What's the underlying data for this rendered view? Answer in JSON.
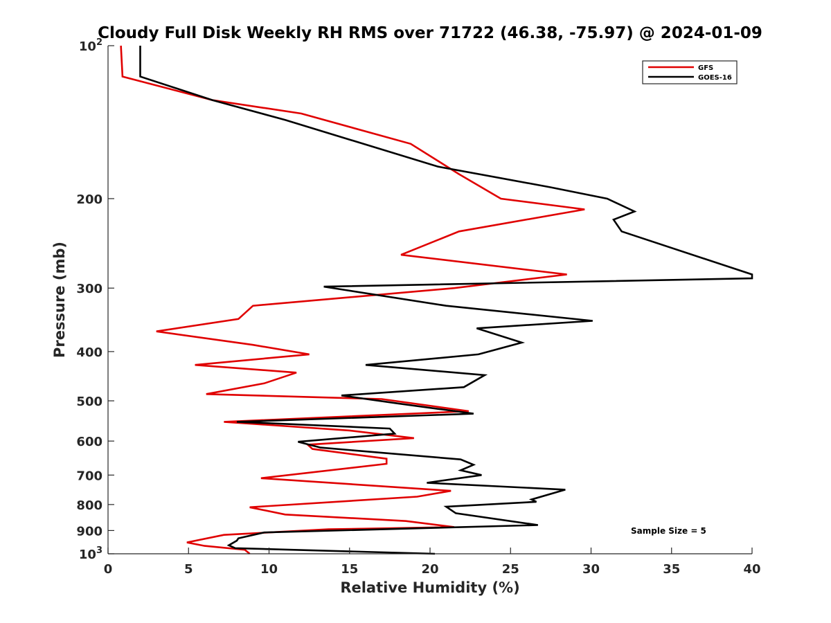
{
  "chart_data": {
    "type": "line",
    "title": "Cloudy Full Disk Weekly RH RMS over 71722 (46.38, -75.97) @ 2024-01-09",
    "xlabel": "Relative Humidity (%)",
    "ylabel": "Pressure (mb)",
    "xlim": [
      0,
      40
    ],
    "ylim": [
      100,
      1000
    ],
    "yscale": "log",
    "yreversed": true,
    "grid": false,
    "legend_position": "top-right",
    "x_ticks": [
      0,
      5,
      10,
      15,
      20,
      25,
      30,
      35,
      40
    ],
    "x_tick_labels": [
      "0",
      "5",
      "10",
      "15",
      "20",
      "25",
      "30",
      "35",
      "40"
    ],
    "y_ticks": [
      100,
      200,
      300,
      400,
      500,
      600,
      700,
      800,
      900,
      1000
    ],
    "y_tick_labels": [
      {
        "base": "10",
        "exp": "2"
      },
      {
        "base": "200",
        "exp": ""
      },
      {
        "base": "300",
        "exp": ""
      },
      {
        "base": "400",
        "exp": ""
      },
      {
        "base": "500",
        "exp": ""
      },
      {
        "base": "600",
        "exp": ""
      },
      {
        "base": "700",
        "exp": ""
      },
      {
        "base": "800",
        "exp": ""
      },
      {
        "base": "900",
        "exp": ""
      },
      {
        "base": "10",
        "exp": "3"
      }
    ],
    "annotation": "Sample Size = 5",
    "series": [
      {
        "name": "GFS",
        "color": "#e00000",
        "points": [
          [
            0.8,
            100
          ],
          [
            0.9,
            115
          ],
          [
            6.5,
            128
          ],
          [
            12.0,
            136
          ],
          [
            18.8,
            156
          ],
          [
            21.8,
            179
          ],
          [
            24.4,
            200
          ],
          [
            29.6,
            210
          ],
          [
            21.8,
            232
          ],
          [
            18.2,
            258
          ],
          [
            28.5,
            282
          ],
          [
            21.5,
            300
          ],
          [
            9.0,
            325
          ],
          [
            8.1,
            345
          ],
          [
            3.0,
            365
          ],
          [
            9.0,
            388
          ],
          [
            12.5,
            405
          ],
          [
            5.4,
            425
          ],
          [
            11.7,
            440
          ],
          [
            9.7,
            462
          ],
          [
            6.1,
            485
          ],
          [
            17.0,
            496
          ],
          [
            22.4,
            524
          ],
          [
            7.2,
            550
          ],
          [
            15.0,
            572
          ],
          [
            19.0,
            592
          ],
          [
            12.4,
            610
          ],
          [
            12.7,
            622
          ],
          [
            17.3,
            650
          ],
          [
            17.3,
            665
          ],
          [
            9.5,
            710
          ],
          [
            21.3,
            752
          ],
          [
            19.2,
            772
          ],
          [
            8.8,
            810
          ],
          [
            11.0,
            837
          ],
          [
            18.5,
            862
          ],
          [
            21.5,
            886
          ],
          [
            13.7,
            895
          ],
          [
            7.2,
            918
          ],
          [
            4.9,
            950
          ],
          [
            6.0,
            965
          ],
          [
            8.5,
            982
          ],
          [
            8.8,
            1000
          ]
        ]
      },
      {
        "name": "GOES-16",
        "color": "#000000",
        "points": [
          [
            2.0,
            100
          ],
          [
            2.0,
            115
          ],
          [
            6.5,
            128
          ],
          [
            11.0,
            140
          ],
          [
            20.5,
            173
          ],
          [
            27.5,
            190
          ],
          [
            31.0,
            200
          ],
          [
            32.7,
            212
          ],
          [
            31.4,
            220
          ],
          [
            31.9,
            232
          ],
          [
            40.0,
            282
          ],
          [
            40.0,
            287
          ],
          [
            13.4,
            298
          ],
          [
            21.0,
            325
          ],
          [
            30.1,
            348
          ],
          [
            22.9,
            360
          ],
          [
            25.7,
            384
          ],
          [
            23.0,
            405
          ],
          [
            16.0,
            425
          ],
          [
            23.4,
            445
          ],
          [
            22.1,
            470
          ],
          [
            14.5,
            488
          ],
          [
            18.0,
            506
          ],
          [
            22.7,
            530
          ],
          [
            8.0,
            550
          ],
          [
            17.5,
            567
          ],
          [
            17.8,
            580
          ],
          [
            11.8,
            602
          ],
          [
            13.2,
            618
          ],
          [
            21.9,
            652
          ],
          [
            22.7,
            668
          ],
          [
            21.9,
            685
          ],
          [
            23.2,
            700
          ],
          [
            19.8,
            725
          ],
          [
            28.4,
            748
          ],
          [
            26.3,
            782
          ],
          [
            26.6,
            790
          ],
          [
            21.0,
            808
          ],
          [
            21.6,
            832
          ],
          [
            26.7,
            878
          ],
          [
            9.7,
            908
          ],
          [
            8.1,
            932
          ],
          [
            8.0,
            942
          ],
          [
            7.5,
            962
          ],
          [
            7.9,
            975
          ],
          [
            20.3,
            1000
          ]
        ]
      }
    ]
  }
}
